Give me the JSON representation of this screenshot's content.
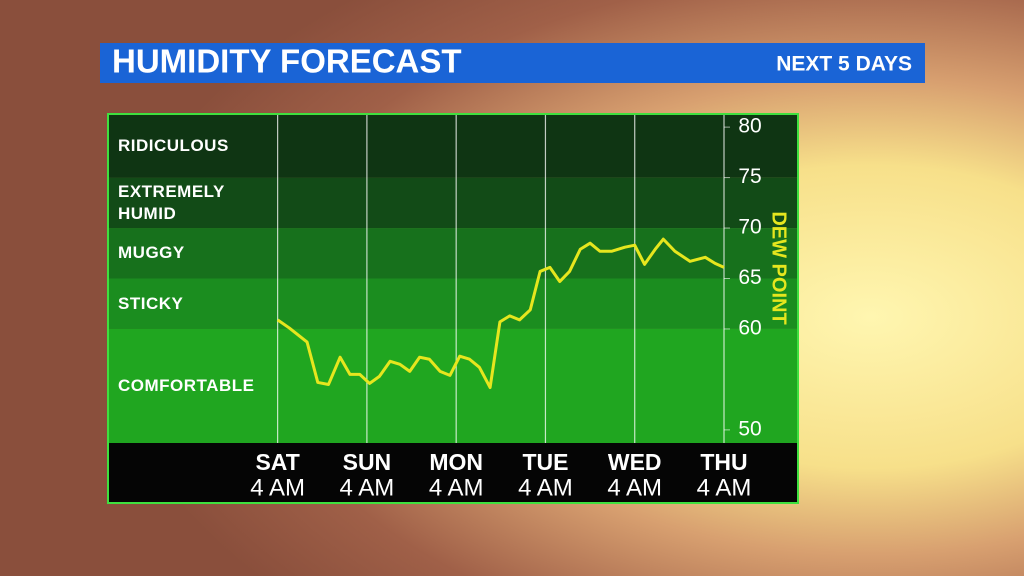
{
  "chart_data": {
    "type": "line",
    "title": "HUMIDITY FORECAST",
    "subtitle": "NEXT 5 DAYS",
    "y_label": "DEW POINT",
    "xlim": [
      -1.9,
      5
    ],
    "xticks": [
      0,
      1,
      2,
      3,
      4,
      5
    ],
    "x_labels": [
      {
        "day": "SAT",
        "time": "4 AM"
      },
      {
        "day": "SUN",
        "time": "4 AM"
      },
      {
        "day": "MON",
        "time": "4 AM"
      },
      {
        "day": "TUE",
        "time": "4 AM"
      },
      {
        "day": "WED",
        "time": "4 AM"
      },
      {
        "day": "THU",
        "time": "4 AM"
      }
    ],
    "ylim": [
      48.7,
      81.3
    ],
    "yticks": [
      50,
      60,
      65,
      70,
      75,
      80
    ],
    "bands": [
      {
        "label": "RIDICULOUS",
        "above": 75,
        "color": "#0f3513"
      },
      {
        "label": "EXTREMELY HUMID",
        "above": 70,
        "color": "#124b17"
      },
      {
        "label": "MUGGY",
        "above": 65,
        "color": "#17711c"
      },
      {
        "label": "STICKY",
        "above": 60,
        "color": "#1b8d1f"
      },
      {
        "label": "COMFORTABLE",
        "color": "#20a620"
      }
    ],
    "series": [
      {
        "color": "#e6e61e",
        "x": [
          0,
          0.13,
          0.33,
          0.45,
          0.57,
          0.7,
          0.81,
          0.92,
          1.03,
          1.14,
          1.26,
          1.37,
          1.48,
          1.59,
          1.7,
          1.82,
          1.93,
          2.04,
          2.15,
          2.26,
          2.38,
          2.49,
          2.6,
          2.71,
          2.83,
          2.94,
          3.05,
          3.16,
          3.27,
          3.39,
          3.5,
          3.61,
          3.74,
          3.89,
          4.0,
          4.11,
          4.23,
          4.32,
          4.45,
          4.62,
          4.79,
          4.9,
          5.0
        ],
        "values": [
          60.9,
          60.1,
          58.7,
          54.7,
          54.5,
          57.2,
          55.5,
          55.5,
          54.6,
          55.3,
          56.8,
          56.5,
          55.8,
          57.2,
          57.0,
          55.8,
          55.4,
          57.3,
          57.0,
          56.2,
          54.2,
          60.7,
          61.3,
          60.9,
          61.9,
          65.7,
          66.1,
          64.7,
          65.7,
          67.9,
          68.5,
          67.7,
          67.7,
          68.1,
          68.3,
          66.4,
          67.9,
          68.9,
          67.7,
          66.7,
          67.1,
          66.5,
          66.1
        ]
      }
    ]
  }
}
